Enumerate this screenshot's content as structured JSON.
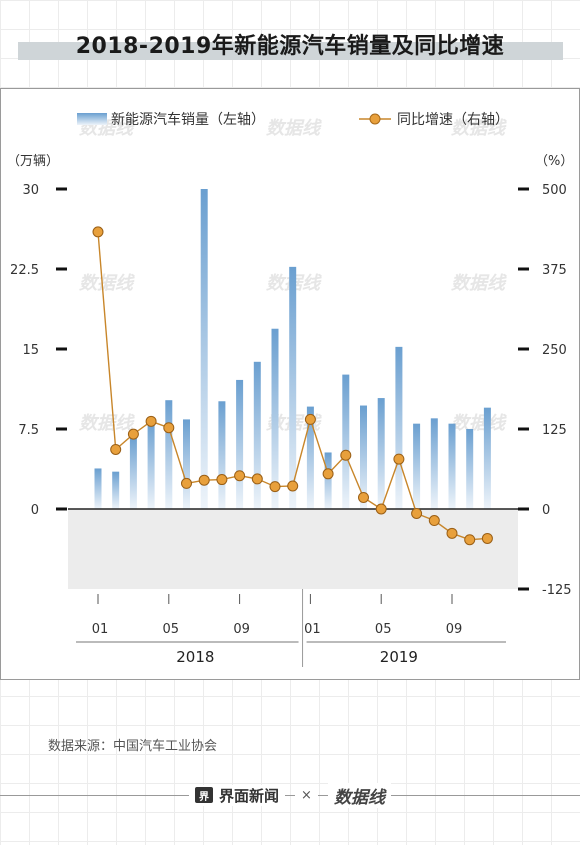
{
  "title": "2018-2019年新能源汽车销量及同比增速",
  "source": "数据来源：中国汽车工业协会",
  "footer": {
    "brand": "界面新闻",
    "brand_icon": "界",
    "times": "×",
    "partner": "数据线"
  },
  "colors": {
    "bar_top": "#6a9fd0",
    "bar_bottom": "#eef4fa",
    "line": "#c8862a",
    "dot": "#e8a03c",
    "negative_area": "#ececec"
  },
  "chart_data": {
    "type": "bar+line",
    "legend": {
      "placement": "top",
      "bars": "新能源汽车销量（左轴）",
      "line": "同比增速（右轴）"
    },
    "left_unit": "（万辆）",
    "right_unit": "（%）",
    "left_axis": {
      "range": [
        0,
        30
      ],
      "ticks": [
        "30",
        "22.5",
        "15",
        "7.5",
        "0"
      ],
      "tick_values": [
        30,
        22.5,
        15,
        7.5,
        0
      ]
    },
    "right_axis": {
      "range": [
        -125,
        500
      ],
      "ticks": [
        "500",
        "375",
        "250",
        "125",
        "0",
        "-125"
      ],
      "tick_values": [
        500,
        375,
        250,
        125,
        0,
        -125
      ]
    },
    "x_tick_labels": [
      "01",
      "05",
      "09",
      "01",
      "05",
      "09"
    ],
    "x_tick_months": [
      1,
      5,
      9,
      13,
      17,
      21
    ],
    "year_labels": [
      "2018",
      "2019"
    ],
    "months": [
      1,
      2,
      3,
      4,
      5,
      6,
      7,
      8,
      9,
      10,
      11,
      12,
      13,
      14,
      15,
      16,
      17,
      18,
      19,
      20,
      21,
      22,
      23
    ],
    "series": [
      {
        "name": "新能源汽车销量（左轴）",
        "type": "bar",
        "values": [
          3.8,
          3.5,
          6.8,
          8.2,
          10.2,
          8.4,
          30.0,
          10.1,
          12.1,
          13.8,
          16.9,
          22.7,
          9.6,
          5.3,
          12.6,
          9.7,
          10.4,
          15.2,
          8.0,
          8.5,
          8.0,
          7.5,
          9.5
        ]
      },
      {
        "name": "同比增速（右轴）",
        "type": "line",
        "values": [
          433,
          93,
          117,
          137,
          127,
          40,
          45,
          46,
          52,
          47,
          35,
          36,
          140,
          55,
          84,
          18,
          0,
          78,
          -7,
          -18,
          -38,
          -48,
          -46
        ]
      }
    ]
  }
}
